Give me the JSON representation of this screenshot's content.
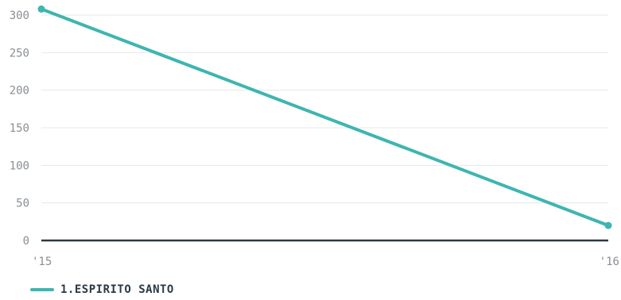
{
  "chart_data": {
    "type": "line",
    "title": "",
    "xlabel": "",
    "ylabel": "",
    "categories": [
      "'15",
      "'16"
    ],
    "ylim": [
      0,
      300
    ],
    "yticks": [
      0,
      50,
      100,
      150,
      200,
      250,
      300
    ],
    "grid": true,
    "legend_position": "bottom-left",
    "series": [
      {
        "name": "1.ESPIRITO SANTO",
        "color": "#3eb5b0",
        "values": [
          308,
          20
        ]
      }
    ]
  },
  "colors": {
    "baseline": "#2b3a44",
    "grid": "#e6e8ea"
  }
}
